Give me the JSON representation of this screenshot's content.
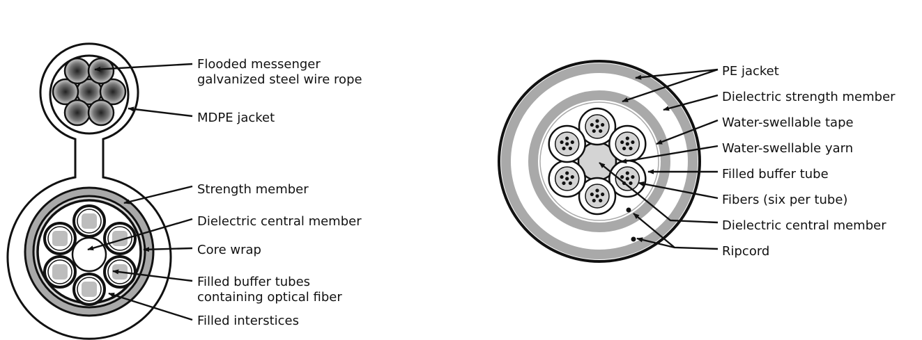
{
  "colors": {
    "ink": "#111111",
    "gray_band": "#a9a9a9",
    "light_fill": "#d4d4d4",
    "fiber_square": "#bdbdbd",
    "background": "#ffffff"
  },
  "left_diagram": {
    "labels": {
      "messenger_line1": "Flooded messenger",
      "messenger_line2": "galvanized steel wire rope",
      "mdpe_jacket": "MDPE jacket",
      "strength_member": "Strength member",
      "dielectric_central_member": "Dielectric central member",
      "core_wrap": "Core wrap",
      "buffer_tubes_line1": "Filled buffer tubes",
      "buffer_tubes_line2": "containing optical fiber",
      "filled_interstices": "Filled interstices"
    }
  },
  "right_diagram": {
    "labels": {
      "pe_jacket": "PE jacket",
      "dielectric_strength_member": "Dielectric strength member",
      "water_swellable_tape": "Water-swellable tape",
      "water_swellable_yarn": "Water-swellable yarn",
      "filled_buffer_tube": "Filled buffer tube",
      "fibers": "Fibers (six per tube)",
      "dielectric_central_member": "Dielectric central member",
      "ripcord": "Ripcord"
    }
  }
}
